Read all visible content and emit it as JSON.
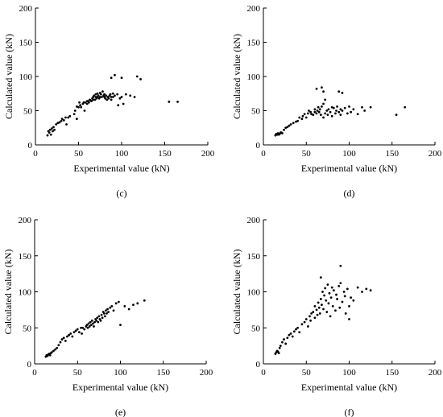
{
  "chart_data": [
    {
      "type": "scatter",
      "panel_label": "(c)",
      "xlabel": "Experimental value (kN)",
      "ylabel": "Calculated value (kN)",
      "xlim": [
        0,
        200
      ],
      "ylim": [
        0,
        200
      ],
      "xticks": [
        "0",
        "50",
        "100",
        "150",
        "200"
      ],
      "yticks": [
        "0",
        "50",
        "100",
        "150",
        "200"
      ],
      "grid": false,
      "series": [
        {
          "x": [
            14,
            15,
            16,
            17,
            18,
            19,
            20,
            21,
            22,
            24,
            26,
            28,
            30,
            31,
            33,
            35,
            36,
            38,
            40,
            45,
            46,
            48,
            48,
            50,
            51,
            52,
            53,
            55,
            56,
            57,
            58,
            60,
            60,
            61,
            62,
            63,
            64,
            65,
            66,
            67,
            67,
            68,
            69,
            70,
            70,
            71,
            72,
            72,
            73,
            74,
            75,
            75,
            76,
            77,
            78,
            79,
            80,
            80,
            81,
            82,
            83,
            84,
            85,
            86,
            87,
            88,
            88,
            90,
            90,
            92,
            95,
            96,
            98,
            100,
            102,
            105,
            110,
            115,
            118,
            122,
            88,
            92,
            100,
            155,
            165
          ],
          "y": [
            14,
            20,
            18,
            22,
            15,
            24,
            20,
            26,
            22,
            30,
            32,
            33,
            35,
            38,
            36,
            40,
            30,
            40,
            42,
            45,
            50,
            56,
            38,
            55,
            62,
            58,
            55,
            60,
            62,
            50,
            62,
            60,
            64,
            64,
            62,
            66,
            65,
            64,
            68,
            70,
            66,
            72,
            66,
            70,
            74,
            68,
            70,
            75,
            72,
            68,
            70,
            76,
            74,
            70,
            78,
            72,
            70,
            74,
            68,
            72,
            66,
            70,
            68,
            72,
            74,
            70,
            66,
            70,
            75,
            72,
            74,
            58,
            68,
            70,
            60,
            74,
            72,
            70,
            100,
            96,
            98,
            102,
            98,
            63,
            63
          ]
        }
      ]
    },
    {
      "type": "scatter",
      "panel_label": "(d)",
      "xlabel": "Experimental value (kN)",
      "ylabel": "Calculated value (kN)",
      "xlim": [
        0,
        200
      ],
      "ylim": [
        0,
        200
      ],
      "xticks": [
        "0",
        "50",
        "100",
        "150",
        "200"
      ],
      "yticks": [
        "0",
        "50",
        "100",
        "150",
        "200"
      ],
      "grid": false,
      "series": [
        {
          "x": [
            14,
            15,
            16,
            17,
            18,
            19,
            20,
            21,
            22,
            24,
            26,
            28,
            30,
            32,
            35,
            38,
            40,
            42,
            45,
            46,
            48,
            50,
            52,
            53,
            55,
            56,
            58,
            60,
            60,
            62,
            63,
            64,
            65,
            66,
            67,
            68,
            70,
            70,
            72,
            74,
            75,
            76,
            78,
            80,
            80,
            82,
            84,
            85,
            86,
            88,
            90,
            90,
            92,
            95,
            98,
            100,
            102,
            105,
            110,
            115,
            118,
            125,
            155,
            165,
            62,
            68,
            70,
            72,
            88,
            92
          ],
          "y": [
            14,
            16,
            15,
            17,
            15,
            16,
            18,
            18,
            17,
            22,
            25,
            26,
            28,
            30,
            32,
            34,
            35,
            40,
            38,
            42,
            45,
            40,
            46,
            50,
            48,
            45,
            44,
            48,
            52,
            46,
            50,
            55,
            48,
            52,
            44,
            56,
            40,
            60,
            46,
            50,
            44,
            52,
            48,
            55,
            42,
            54,
            46,
            50,
            56,
            48,
            52,
            44,
            50,
            54,
            46,
            56,
            48,
            52,
            45,
            55,
            50,
            55,
            44,
            55,
            82,
            84,
            78,
            66,
            78,
            76
          ]
        }
      ]
    },
    {
      "type": "scatter",
      "panel_label": "(e)",
      "xlabel": "Experimental value (kN)",
      "ylabel": "Calculated value (kN)",
      "xlim": [
        0,
        200
      ],
      "ylim": [
        0,
        200
      ],
      "xticks": [
        "0",
        "50",
        "100",
        "150",
        "200"
      ],
      "yticks": [
        "0",
        "50",
        "100",
        "150",
        "200"
      ],
      "grid": false,
      "series": [
        {
          "x": [
            13,
            14,
            15,
            16,
            17,
            18,
            19,
            20,
            22,
            24,
            26,
            28,
            30,
            32,
            34,
            36,
            38,
            40,
            42,
            44,
            46,
            48,
            50,
            52,
            54,
            55,
            56,
            58,
            60,
            61,
            62,
            63,
            64,
            65,
            66,
            67,
            68,
            69,
            70,
            71,
            72,
            73,
            74,
            75,
            76,
            77,
            78,
            79,
            80,
            81,
            82,
            83,
            84,
            85,
            86,
            88,
            90,
            92,
            95,
            98,
            100,
            105,
            110,
            115,
            120,
            128
          ],
          "y": [
            10,
            12,
            11,
            13,
            14,
            12,
            15,
            16,
            18,
            20,
            22,
            26,
            30,
            34,
            36,
            32,
            38,
            40,
            42,
            38,
            44,
            46,
            48,
            44,
            50,
            42,
            50,
            48,
            52,
            54,
            50,
            56,
            52,
            58,
            54,
            60,
            56,
            52,
            58,
            62,
            60,
            64,
            58,
            66,
            62,
            60,
            68,
            64,
            72,
            70,
            66,
            74,
            70,
            76,
            72,
            78,
            80,
            74,
            84,
            86,
            54,
            80,
            76,
            82,
            84,
            88
          ]
        }
      ]
    },
    {
      "type": "scatter",
      "panel_label": "(f)",
      "xlabel": "Experimental value (kN)",
      "ylabel": "Calculated value (kN)",
      "xlim": [
        0,
        200
      ],
      "ylim": [
        0,
        200
      ],
      "xticks": [
        "0",
        "50",
        "100",
        "150",
        "200"
      ],
      "yticks": [
        "0",
        "50",
        "100",
        "150",
        "200"
      ],
      "grid": false,
      "series": [
        {
          "x": [
            14,
            15,
            16,
            17,
            18,
            19,
            20,
            22,
            24,
            26,
            28,
            30,
            32,
            34,
            36,
            38,
            40,
            42,
            45,
            48,
            50,
            52,
            54,
            55,
            56,
            58,
            60,
            60,
            62,
            63,
            64,
            65,
            66,
            67,
            68,
            69,
            70,
            71,
            72,
            73,
            74,
            75,
            76,
            77,
            78,
            79,
            80,
            81,
            82,
            84,
            85,
            86,
            88,
            89,
            90,
            92,
            94,
            95,
            96,
            98,
            100,
            102,
            105,
            110,
            115,
            120,
            125,
            90,
            67,
            100
          ],
          "y": [
            14,
            16,
            18,
            17,
            15,
            22,
            25,
            30,
            34,
            28,
            36,
            40,
            42,
            38,
            45,
            48,
            50,
            44,
            55,
            58,
            62,
            52,
            66,
            60,
            70,
            72,
            64,
            80,
            75,
            68,
            85,
            78,
            70,
            90,
            82,
            100,
            76,
            95,
            105,
            88,
            72,
            110,
            84,
            98,
            66,
            92,
            106,
            80,
            102,
            74,
            96,
            90,
            108,
            78,
            112,
            86,
            100,
            94,
            70,
            104,
            62,
            92,
            88,
            106,
            100,
            104,
            102,
            136,
            120,
            80
          ]
        }
      ]
    }
  ]
}
